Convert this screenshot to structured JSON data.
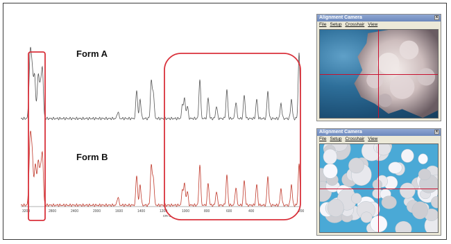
{
  "labels": {
    "form_a": "Form A",
    "form_b": "Form B"
  },
  "axis": {
    "ticks": [
      "3200",
      "2800",
      "2400",
      "2000",
      "1600",
      "1400",
      "1200",
      "1000",
      "800",
      "600",
      "400",
      "200"
    ],
    "unit": "cm-1"
  },
  "windows": [
    {
      "title": "Alignment Camera",
      "menu": [
        "File",
        "Setup",
        "Crosshair",
        "View"
      ],
      "close": "x"
    },
    {
      "title": "Alignment Camera",
      "menu": [
        "File",
        "Setup",
        "Crosshair",
        "View"
      ],
      "close": "x"
    }
  ],
  "colors": {
    "highlight": "#d9313b",
    "form_a_trace": "#555555",
    "form_b_trace": "#c0392b",
    "crosshair": "#c8102e"
  }
}
